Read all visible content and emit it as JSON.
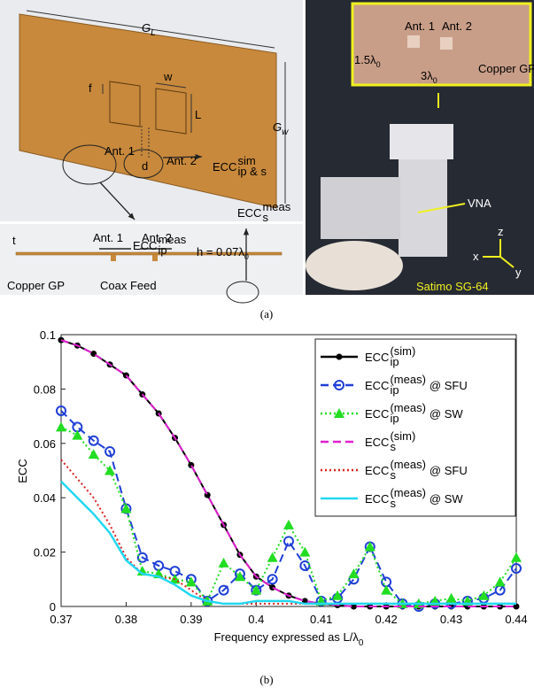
{
  "panel_a": {
    "caption": "(a)",
    "diagram": {
      "gl": "G",
      "gl_sub": "L",
      "gw": "G",
      "gw_sub": "w",
      "f": "f",
      "w": "w",
      "L": "L",
      "d": "d",
      "ant1": "Ant. 1",
      "ant2": "Ant. 2",
      "t": "t",
      "sec_ant1": "Ant. 1",
      "sec_ant2": "Ant. 2",
      "h": "h = 0.07λ",
      "h_sub": "0",
      "copper": "Copper GP",
      "coax": "Coax Feed"
    },
    "photo": {
      "ant1": "Ant. 1",
      "ant2": "Ant. 2",
      "width": "1.5λ",
      "width_sub": "0",
      "length": "3λ",
      "length_sub": "0",
      "copper": "Copper GP",
      "vna": "VNA",
      "satimo": "Satimo SG-64",
      "x": "x",
      "y": "y",
      "z": "z"
    }
  },
  "chart_data": {
    "type": "line",
    "caption": "(b)",
    "x_label": "Frequency expressed as L/λ",
    "x_label_sub": "0",
    "y_label": "ECC",
    "xlim": [
      0.37,
      0.44
    ],
    "xticks": [
      0.37,
      0.38,
      0.39,
      0.4,
      0.41,
      0.42,
      0.43,
      0.44
    ],
    "ylim": [
      0,
      0.1
    ],
    "yticks": [
      0,
      0.02,
      0.04,
      0.06,
      0.08,
      0.1
    ],
    "grid": false,
    "legend": "top-right",
    "x": [
      0.37,
      0.3725,
      0.375,
      0.3775,
      0.38,
      0.3825,
      0.385,
      0.3875,
      0.39,
      0.3925,
      0.395,
      0.3975,
      0.4,
      0.4025,
      0.405,
      0.4075,
      0.41,
      0.4125,
      0.415,
      0.4175,
      0.42,
      0.4225,
      0.425,
      0.4275,
      0.43,
      0.4325,
      0.435,
      0.4375,
      0.44
    ],
    "series": [
      {
        "name": "ECC",
        "name_sub": "ip",
        "name_sup": "(sim)",
        "color": "#000000",
        "style": "solid",
        "marker": "dot",
        "values": [
          0.098,
          0.096,
          0.093,
          0.089,
          0.085,
          0.078,
          0.071,
          0.062,
          0.052,
          0.041,
          0.03,
          0.019,
          0.011,
          0.007,
          0.004,
          0.002,
          0.001,
          0.0005,
          0,
          0,
          0,
          0,
          0,
          0,
          0,
          0,
          0,
          0,
          0
        ]
      },
      {
        "name": "ECC",
        "name_sub": "ip",
        "name_sup": "(meas)",
        "name_suffix": "@ SFU",
        "color": "#1f3fd6",
        "style": "dashed",
        "marker": "circle",
        "values": [
          0.072,
          0.066,
          0.061,
          0.057,
          0.036,
          0.018,
          0.015,
          0.013,
          0.01,
          0.002,
          0.006,
          0.012,
          0.006,
          0.01,
          0.024,
          0.015,
          0.002,
          0.003,
          0.01,
          0.022,
          0.009,
          0.001,
          0,
          0.001,
          0.001,
          0.002,
          0.003,
          0.006,
          0.014
        ]
      },
      {
        "name": "ECC",
        "name_sub": "ip",
        "name_sup": "(meas)",
        "name_suffix": "@ SW",
        "color": "#22dd22",
        "style": "dotted",
        "marker": "triangle",
        "values": [
          0.066,
          0.063,
          0.056,
          0.05,
          0.036,
          0.013,
          0.012,
          0.01,
          0.009,
          0.002,
          0.016,
          0.011,
          0.006,
          0.018,
          0.03,
          0.02,
          0.002,
          0.004,
          0.012,
          0.022,
          0.006,
          0.001,
          0.001,
          0.002,
          0.003,
          0.002,
          0.004,
          0.009,
          0.018
        ]
      },
      {
        "name": "ECC",
        "name_sub": "s",
        "name_sup": "(sim)",
        "color": "#e020d0",
        "style": "dashed",
        "marker": "none",
        "values": [
          0.098,
          0.096,
          0.093,
          0.089,
          0.085,
          0.078,
          0.071,
          0.062,
          0.052,
          0.041,
          0.03,
          0.019,
          0.011,
          0.007,
          0.004,
          0.002,
          0.001,
          0.0005,
          0,
          0,
          0,
          0,
          0,
          0,
          0,
          0,
          0,
          0,
          0
        ]
      },
      {
        "name": "ECC",
        "name_sub": "s",
        "name_sup": "(meas)",
        "name_suffix": "@ SFU",
        "color": "#dd2020",
        "style": "dotted",
        "marker": "none",
        "values": [
          0.054,
          0.047,
          0.04,
          0.03,
          0.018,
          0.012,
          0.011,
          0.01,
          0.006,
          0.002,
          0.001,
          0.001,
          0.001,
          0.001,
          0.001,
          0.001,
          0.001,
          0.001,
          0.001,
          0.001,
          0.001,
          0.001,
          0.001,
          0.001,
          0.001,
          0.001,
          0.001,
          0.001,
          0.001
        ]
      },
      {
        "name": "ECC",
        "name_sub": "s",
        "name_sup": "(meas)",
        "name_suffix": "@ SW",
        "color": "#22d8f0",
        "style": "solid",
        "marker": "none",
        "values": [
          0.046,
          0.04,
          0.034,
          0.027,
          0.017,
          0.012,
          0.011,
          0.008,
          0.004,
          0.002,
          0.001,
          0.001,
          0.002,
          0.002,
          0.002,
          0.001,
          0.001,
          0.001,
          0.001,
          0.001,
          0.001,
          0.001,
          0.001,
          0.001,
          0.001,
          0.001,
          0.001,
          0.001,
          0.001
        ]
      }
    ],
    "annotations": [
      {
        "text": "ECC",
        "sup": "sim",
        "sub": "ip & s"
      },
      {
        "text": "ECC",
        "sup": "meas",
        "sub": "s"
      },
      {
        "text": "ECC",
        "sup": "meas",
        "sub": "ip"
      }
    ]
  }
}
